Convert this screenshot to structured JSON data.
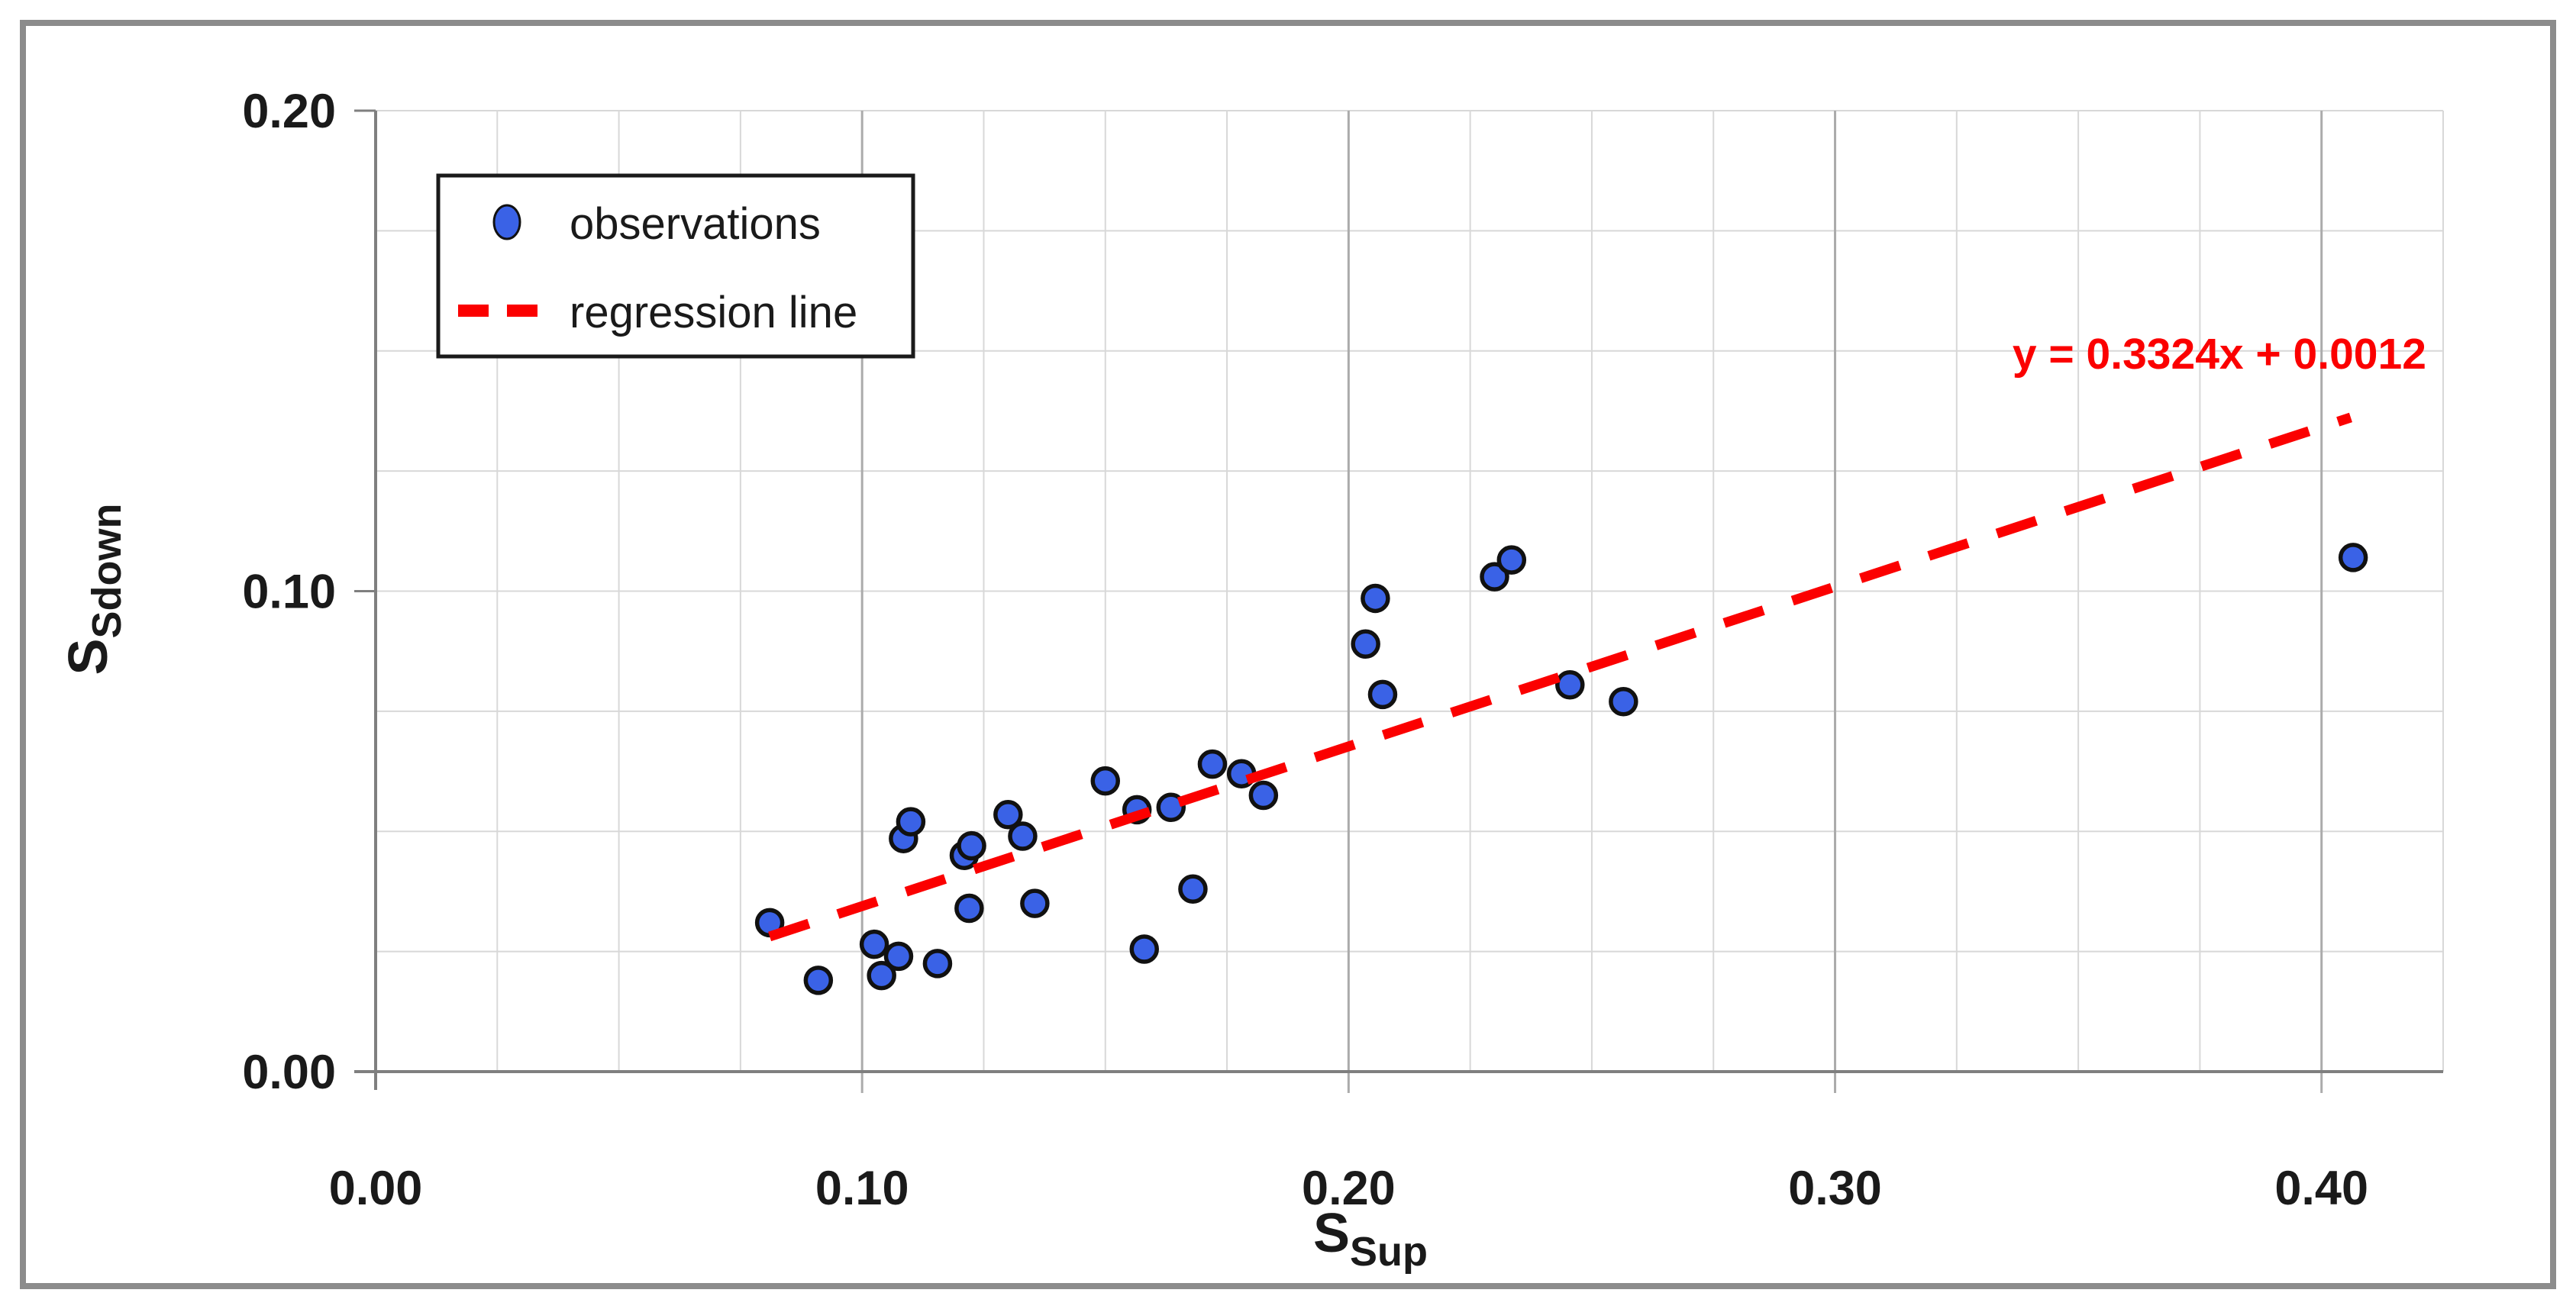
{
  "chart_data": {
    "type": "scatter",
    "title": "",
    "xlabel": {
      "main": "S",
      "sub": "Sup"
    },
    "ylabel": {
      "main": "S",
      "sub": "Sdown"
    },
    "xlim": [
      0,
      0.425
    ],
    "ylim": [
      0,
      0.2
    ],
    "minor_step": 0.025,
    "grid": true,
    "x_major_ticks": [
      0,
      0.1,
      0.2,
      0.3,
      0.4
    ],
    "x_tick_labels": [
      "0.00",
      "0.10",
      "0.20",
      "0.30",
      "0.40"
    ],
    "y_major_ticks": [
      0,
      0.1,
      0.2
    ],
    "y_tick_labels": [
      "0.00",
      "0.10",
      "0.20"
    ],
    "legend": {
      "position": "top-left",
      "observations_label": "observations",
      "regression_label": "regression line"
    },
    "annotation": {
      "text": "y = 0.3324x + 0.0012",
      "x": 0.379,
      "y": 0.1495
    },
    "series": [
      {
        "name": "observations",
        "type": "scatter",
        "marker": "circle",
        "points": [
          [
            0.081,
            0.031
          ],
          [
            0.091,
            0.019
          ],
          [
            0.1025,
            0.0265
          ],
          [
            0.104,
            0.02
          ],
          [
            0.1075,
            0.024
          ],
          [
            0.1085,
            0.0485
          ],
          [
            0.11,
            0.052
          ],
          [
            0.1155,
            0.0225
          ],
          [
            0.121,
            0.045
          ],
          [
            0.1225,
            0.047
          ],
          [
            0.122,
            0.034
          ],
          [
            0.13,
            0.0535
          ],
          [
            0.133,
            0.049
          ],
          [
            0.1355,
            0.035
          ],
          [
            0.15,
            0.0605
          ],
          [
            0.1565,
            0.0545
          ],
          [
            0.1635,
            0.055
          ],
          [
            0.158,
            0.0255
          ],
          [
            0.168,
            0.038
          ],
          [
            0.172,
            0.064
          ],
          [
            0.178,
            0.062
          ],
          [
            0.1825,
            0.0575
          ],
          [
            0.2035,
            0.089
          ],
          [
            0.2055,
            0.0985
          ],
          [
            0.207,
            0.0785
          ],
          [
            0.23,
            0.103
          ],
          [
            0.2335,
            0.1065
          ],
          [
            0.2455,
            0.0805
          ],
          [
            0.2565,
            0.077
          ],
          [
            0.4065,
            0.107
          ]
        ]
      },
      {
        "name": "regression line",
        "type": "line",
        "style": "dashed",
        "slope": 0.3324,
        "intercept": 0.0012,
        "x_start": 0.081,
        "x_end": 0.406
      }
    ]
  },
  "colors": {
    "point_fill": "#3A62E6",
    "point_stroke": "#111111",
    "regression": "#FB0000",
    "annotation_text": "#FB0000",
    "grid_minor": "#D8D8D8",
    "grid_major": "#ABABAB",
    "axis_line": "#7F7F7F",
    "frame_border": "#8C8C8C",
    "text": "#1A1A1A",
    "legend_border": "#1A1A1A",
    "background": "#FFFFFF"
  }
}
